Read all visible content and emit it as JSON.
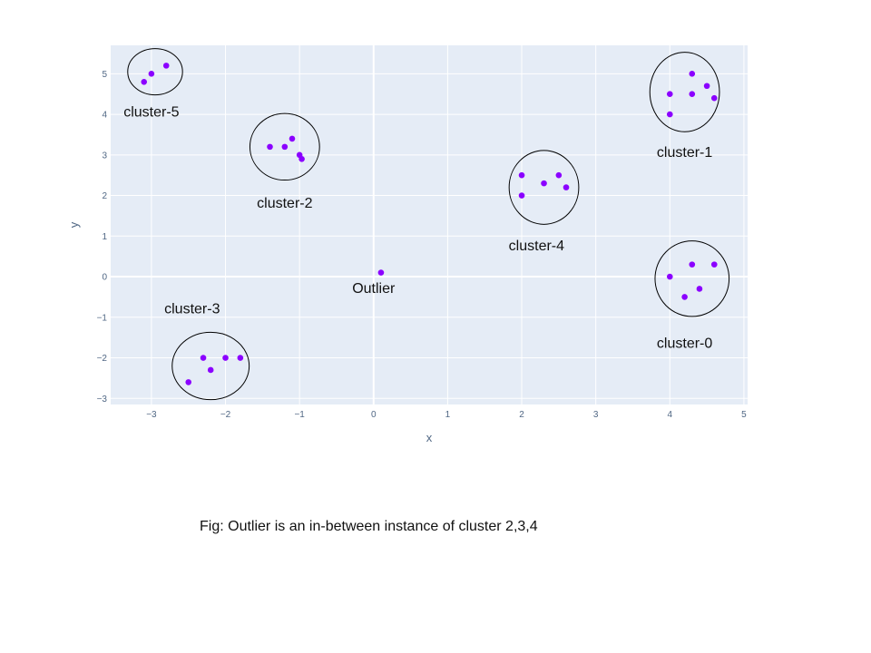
{
  "chart_data": {
    "type": "scatter",
    "xlabel": "x",
    "ylabel": "y",
    "xlim": [
      -3.55,
      5.05
    ],
    "ylim": [
      -3.15,
      5.7
    ],
    "x_ticks": [
      -3,
      -2,
      -1,
      0,
      1,
      2,
      3,
      4,
      5
    ],
    "y_ticks": [
      -3,
      -2,
      -1,
      0,
      1,
      2,
      3,
      4,
      5
    ],
    "grid": true,
    "legend": "none",
    "plot_bg": "#E5ECF6",
    "marker_color": "#8B00FF",
    "points": [
      {
        "x": -3.1,
        "y": 4.8
      },
      {
        "x": -3.0,
        "y": 5.0
      },
      {
        "x": -2.8,
        "y": 5.2
      },
      {
        "x": -1.4,
        "y": 3.2
      },
      {
        "x": -1.2,
        "y": 3.2
      },
      {
        "x": -1.1,
        "y": 3.4
      },
      {
        "x": -1.0,
        "y": 3.0
      },
      {
        "x": -0.97,
        "y": 2.9
      },
      {
        "x": 4.0,
        "y": 4.5
      },
      {
        "x": 4.0,
        "y": 4.0
      },
      {
        "x": 4.3,
        "y": 5.0
      },
      {
        "x": 4.3,
        "y": 4.5
      },
      {
        "x": 4.5,
        "y": 4.7
      },
      {
        "x": 4.6,
        "y": 4.4
      },
      {
        "x": 2.0,
        "y": 2.5
      },
      {
        "x": 2.0,
        "y": 2.0
      },
      {
        "x": 2.3,
        "y": 2.3
      },
      {
        "x": 2.5,
        "y": 2.5
      },
      {
        "x": 2.6,
        "y": 2.2
      },
      {
        "x": 4.0,
        "y": 0.0
      },
      {
        "x": 4.2,
        "y": -0.5
      },
      {
        "x": 4.3,
        "y": 0.3
      },
      {
        "x": 4.4,
        "y": -0.3
      },
      {
        "x": 4.6,
        "y": 0.3
      },
      {
        "x": -2.5,
        "y": -2.6
      },
      {
        "x": -2.3,
        "y": -2.0
      },
      {
        "x": -2.2,
        "y": -2.3
      },
      {
        "x": -2.0,
        "y": -2.0
      },
      {
        "x": -1.8,
        "y": -2.0
      },
      {
        "x": 0.1,
        "y": 0.1
      }
    ],
    "clusters": [
      {
        "name": "cluster-5",
        "cx": -2.95,
        "cy": 5.05,
        "rx": 0.37,
        "ry": 0.57
      },
      {
        "name": "cluster-2",
        "cx": -1.2,
        "cy": 3.2,
        "rx": 0.47,
        "ry": 0.82
      },
      {
        "name": "cluster-1",
        "cx": 4.2,
        "cy": 4.55,
        "rx": 0.47,
        "ry": 0.98
      },
      {
        "name": "cluster-4",
        "cx": 2.3,
        "cy": 2.2,
        "rx": 0.47,
        "ry": 0.91
      },
      {
        "name": "cluster-0",
        "cx": 4.3,
        "cy": -0.05,
        "rx": 0.5,
        "ry": 0.93
      },
      {
        "name": "cluster-3",
        "cx": -2.2,
        "cy": -2.2,
        "rx": 0.52,
        "ry": 0.83
      }
    ],
    "annotations": [
      {
        "text": "cluster-5",
        "x": -3.0,
        "y": 3.95
      },
      {
        "text": "cluster-2",
        "x": -1.2,
        "y": 1.7
      },
      {
        "text": "cluster-1",
        "x": 4.2,
        "y": 2.95
      },
      {
        "text": "cluster-4",
        "x": 2.2,
        "y": 0.65
      },
      {
        "text": "cluster-0",
        "x": 4.2,
        "y": -1.75
      },
      {
        "text": "cluster-3",
        "x": -2.45,
        "y": -0.9
      },
      {
        "text": "Outlier",
        "x": 0.0,
        "y": -0.4
      }
    ]
  },
  "caption": "Fig: Outlier is an in-between instance of cluster 2,3,4"
}
